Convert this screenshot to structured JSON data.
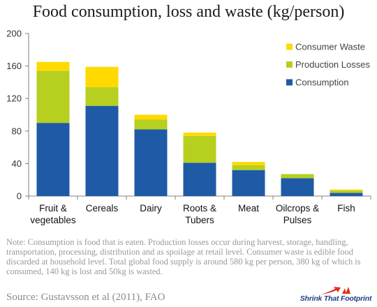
{
  "chart_data": {
    "type": "bar",
    "stacked": true,
    "title": "Food consumption, loss and waste (kg/person)",
    "categories": [
      "Fruit & vegetables",
      "Cereals",
      "Dairy",
      "Roots & Tubers",
      "Meat",
      "Oilcrops & Pulses",
      "Fish"
    ],
    "category_lines": [
      [
        "Fruit &",
        "vegetables"
      ],
      [
        "Cereals"
      ],
      [
        "Dairy"
      ],
      [
        "Roots &",
        "Tubers"
      ],
      [
        "Meat"
      ],
      [
        "Oilcrops &",
        "Pulses"
      ],
      [
        "Fish"
      ]
    ],
    "series": [
      {
        "name": "Consumption",
        "color": "#1f5aa6",
        "values": [
          90,
          111,
          82,
          41,
          32,
          22,
          4
        ]
      },
      {
        "name": "Production Losses",
        "color": "#b7cf1f",
        "values": [
          64,
          23,
          12,
          33,
          6,
          5,
          3
        ]
      },
      {
        "name": "Consumer Waste",
        "color": "#ffd900",
        "values": [
          11,
          25,
          6,
          4,
          4,
          0,
          1
        ]
      }
    ],
    "ylim": [
      0,
      200
    ],
    "yticks": [
      0,
      40,
      80,
      120,
      160,
      200
    ],
    "grid": false,
    "legend": "top-right",
    "xlabel": "",
    "ylabel": ""
  },
  "note": "Note: Consumption is food that is eaten.  Production losses occur during harvest, storage, handling, transportation, processing, distribution and as spoilage at retail level. Consumer waste is edible food discarded at household level.  Total global food supply is around 580 kg per person, 380 kg of which is consumed, 140 kg is lost and 50kg is wasted.",
  "source": "Source:  Gustavsson et al (2011), FAO",
  "logo": {
    "text": "Shrink That Footprint",
    "icon": "footprint-arrow-icon",
    "colors": {
      "arrow": "#e03020",
      "text": "#1f3d8a"
    }
  }
}
